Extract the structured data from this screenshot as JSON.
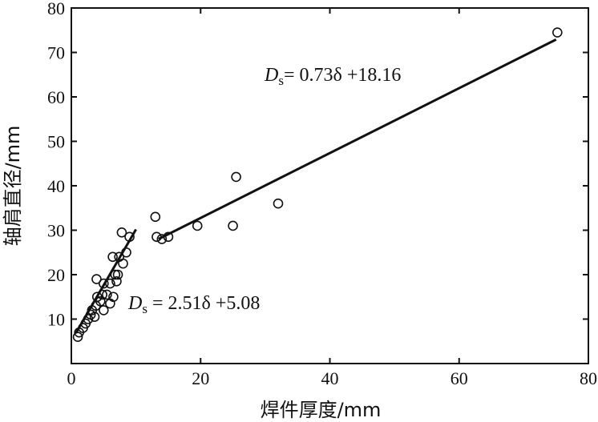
{
  "chart_data": {
    "type": "scatter",
    "xlabel": "焊件厚度/mm",
    "ylabel": "轴肩直径/mm",
    "xlim": [
      0,
      80
    ],
    "ylim": [
      0,
      80
    ],
    "xticks": [
      "0",
      "20",
      "40",
      "60",
      "80"
    ],
    "yticks": [
      "10",
      "20",
      "30",
      "40",
      "50",
      "60",
      "70",
      "80"
    ],
    "series": [
      {
        "marker": "open-circle",
        "points": [
          [
            1.0,
            6.0
          ],
          [
            1.2,
            7.0
          ],
          [
            1.8,
            8.0
          ],
          [
            2.2,
            9.0
          ],
          [
            2.6,
            10.0
          ],
          [
            3.0,
            11.0
          ],
          [
            3.2,
            12.0
          ],
          [
            3.6,
            10.5
          ],
          [
            3.8,
            13.0
          ],
          [
            4.0,
            15.0
          ],
          [
            3.9,
            19.0
          ],
          [
            4.5,
            14.0
          ],
          [
            4.8,
            15.5
          ],
          [
            5.0,
            18.0
          ],
          [
            5.0,
            12.0
          ],
          [
            5.5,
            15.5
          ],
          [
            6.0,
            13.5
          ],
          [
            6.0,
            18.0
          ],
          [
            6.4,
            24.0
          ],
          [
            6.5,
            15.0
          ],
          [
            6.8,
            20.0
          ],
          [
            7.0,
            18.5
          ],
          [
            7.2,
            20.0
          ],
          [
            7.4,
            24.0
          ],
          [
            7.8,
            29.5
          ],
          [
            8.0,
            22.5
          ],
          [
            8.5,
            25.0
          ],
          [
            9.0,
            28.5
          ],
          [
            13.0,
            33.0
          ],
          [
            13.2,
            28.5
          ],
          [
            14.0,
            28.0
          ],
          [
            15.0,
            28.5
          ],
          [
            19.5,
            31.0
          ],
          [
            25.0,
            31.0
          ],
          [
            25.5,
            42.0
          ],
          [
            32.0,
            36.0
          ],
          [
            75.2,
            74.5
          ]
        ]
      }
    ],
    "fits": [
      {
        "equation": "Ds = 2.51δ +5.08",
        "slope": 2.51,
        "intercept": 5.08,
        "x_range": [
          0.7,
          10.0
        ]
      },
      {
        "equation": "Ds = 0.73δ +18.16",
        "slope": 0.73,
        "intercept": 18.16,
        "x_range": [
          13.5,
          75.0
        ]
      }
    ],
    "annotations": [
      {
        "main": "D",
        "sub": "s",
        "rest": "= 0.73δ +18.16"
      },
      {
        "main": "D",
        "sub": "s",
        "rest": " = 2.51δ +5.08"
      }
    ]
  }
}
